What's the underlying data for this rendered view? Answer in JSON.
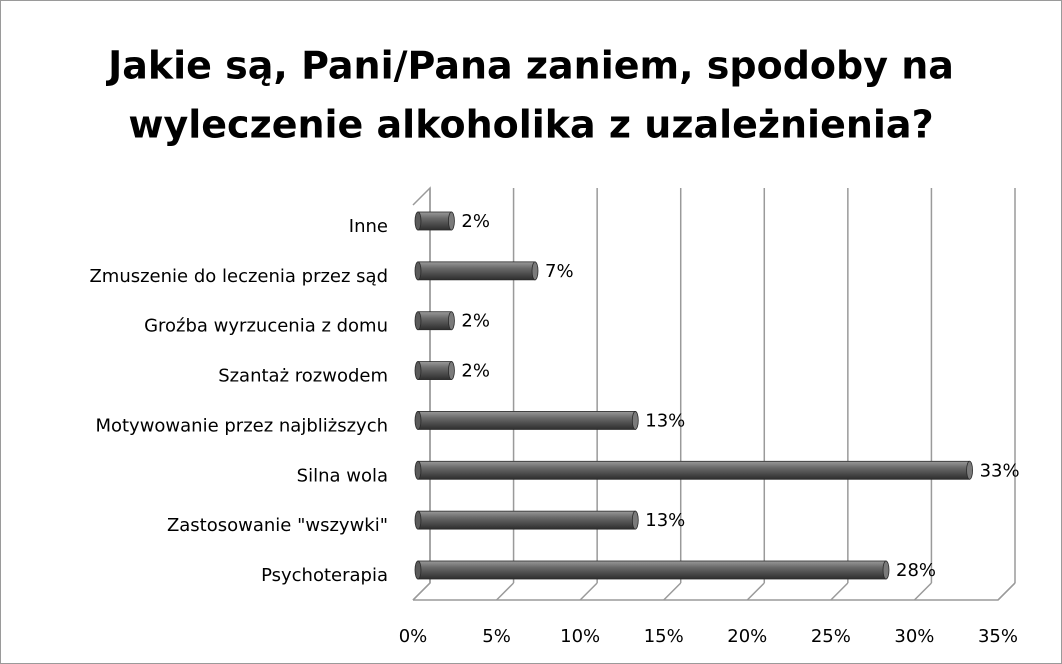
{
  "chart_data": {
    "type": "bar",
    "orientation": "horizontal",
    "title": [
      "Jakie są, Pani/Pana zaniem, spodoby na",
      "wyleczenie alkoholika z uzależnienia?"
    ],
    "categories": [
      "Inne",
      "Zmuszenie do leczenia przez sąd",
      "Groźba wyrzucenia z domu",
      "Szantaż rozwodem",
      "Motywowanie przez najbliższych",
      "Silna wola",
      "Zastosowanie \"wszywki\"",
      "Psychoterapia"
    ],
    "values": [
      2,
      7,
      2,
      2,
      13,
      33,
      13,
      28
    ],
    "value_labels": [
      "2%",
      "7%",
      "2%",
      "2%",
      "13%",
      "33%",
      "13%",
      "28%"
    ],
    "color": "#595959",
    "xlim": [
      0,
      35
    ],
    "xticks": [
      {
        "value": 0,
        "label": "0%"
      },
      {
        "value": 5,
        "label": "5%"
      },
      {
        "value": 10,
        "label": "10%"
      },
      {
        "value": 15,
        "label": "15%"
      },
      {
        "value": 20,
        "label": "20%"
      },
      {
        "value": 25,
        "label": "25%"
      },
      {
        "value": 30,
        "label": "30%"
      },
      {
        "value": 35,
        "label": "35%"
      }
    ],
    "grid": true
  }
}
